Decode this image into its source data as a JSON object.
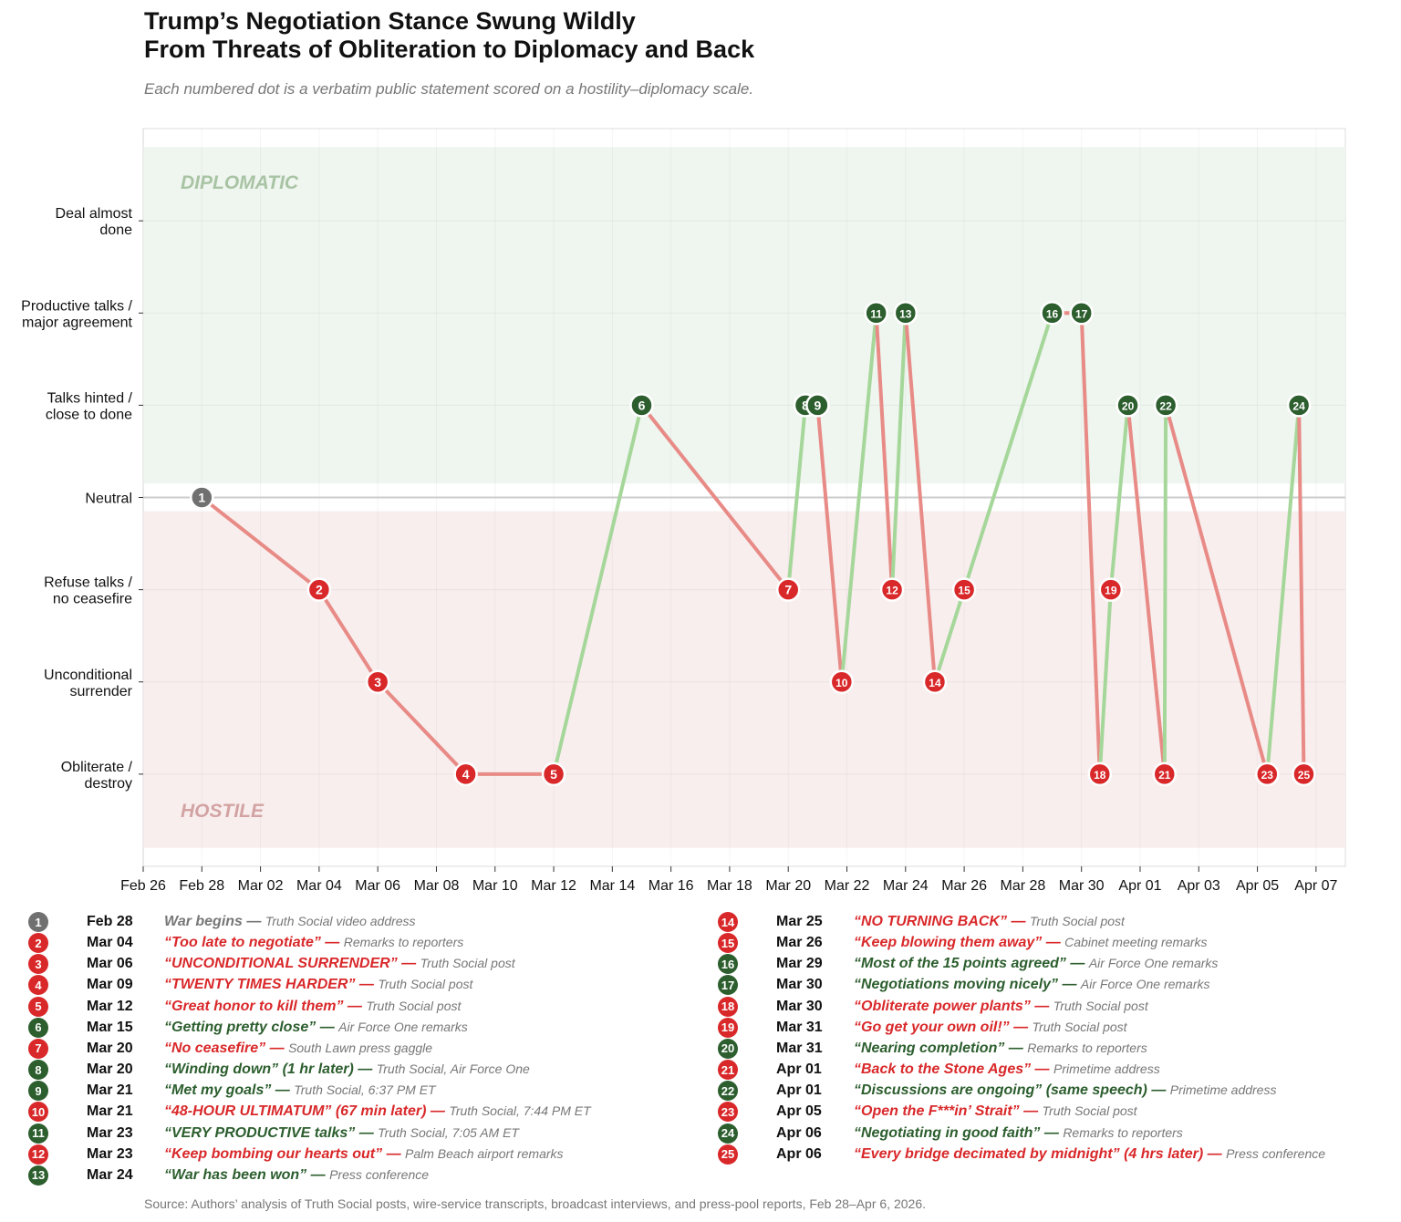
{
  "title_line1": "Trump’s Negotiation Stance Swung Wildly",
  "title_line2": "From Threats of Obliteration to Diplomacy and Back",
  "subtitle": "Each numbered dot is a verbatim public statement scored on a hostility–diplomacy scale.",
  "source": "Source: Authors’ analysis of Truth Social posts, wire-service transcripts, broadcast interviews, and press-pool reports, Feb 28–Apr 6, 2026.",
  "colors": {
    "hostile": "#d9282a",
    "diplomatic": "#2c5e2e",
    "neutral": "#707070",
    "hostile_line": "#e88b87",
    "diplomatic_line": "#a6d79a",
    "diplomatic_band": "#eff5ef",
    "hostile_band": "#f8eeee"
  },
  "chart_data": {
    "type": "line",
    "xlim": [
      "2026-02-26",
      "2026-04-08"
    ],
    "ylim": [
      -4,
      4
    ],
    "grid": true,
    "x_ticks": [
      "Feb 26",
      "Feb 28",
      "Mar 02",
      "Mar 04",
      "Mar 06",
      "Mar 08",
      "Mar 10",
      "Mar 12",
      "Mar 14",
      "Mar 16",
      "Mar 18",
      "Mar 20",
      "Mar 22",
      "Mar 24",
      "Mar 26",
      "Mar 28",
      "Mar 30",
      "Apr 01",
      "Apr 03",
      "Apr 05",
      "Apr 07"
    ],
    "y_ticks": [
      {
        "value": 3,
        "label": [
          "Deal almost",
          "done"
        ]
      },
      {
        "value": 2,
        "label": [
          "Productive talks /",
          "major agreement"
        ]
      },
      {
        "value": 1,
        "label": [
          "Talks hinted /",
          "close to done"
        ]
      },
      {
        "value": 0,
        "label": [
          "Neutral"
        ]
      },
      {
        "value": -1,
        "label": [
          "Refuse talks /",
          "no ceasefire"
        ]
      },
      {
        "value": -2,
        "label": [
          "Unconditional",
          "surrender"
        ]
      },
      {
        "value": -3,
        "label": [
          "Obliterate /",
          "destroy"
        ]
      }
    ],
    "bands": [
      {
        "label": "DIPLOMATIC",
        "from": 0.15,
        "to": 3.8
      },
      {
        "label": "HOSTILE",
        "from": -3.8,
        "to": -0.15
      }
    ],
    "points": [
      {
        "n": "1",
        "x": "2026-02-28T00:00",
        "y": 0,
        "tone": "neutral",
        "date": "Feb 28",
        "quote": "War begins",
        "source": "Truth Social video address"
      },
      {
        "n": "2",
        "x": "2026-03-04T00:00",
        "y": -1,
        "tone": "hostile",
        "date": "Mar 04",
        "quote": "“Too late to negotiate”",
        "source": "Remarks to reporters"
      },
      {
        "n": "3",
        "x": "2026-03-06T00:00",
        "y": -2,
        "tone": "hostile",
        "date": "Mar 06",
        "quote": "“UNCONDITIONAL SURRENDER”",
        "source": "Truth Social post"
      },
      {
        "n": "4",
        "x": "2026-03-09T00:00",
        "y": -3,
        "tone": "hostile",
        "date": "Mar 09",
        "quote": "“TWENTY TIMES HARDER”",
        "source": "Truth Social post"
      },
      {
        "n": "5",
        "x": "2026-03-12T00:00",
        "y": -3,
        "tone": "hostile",
        "date": "Mar 12",
        "quote": "“Great honor to kill them”",
        "source": "Truth Social post"
      },
      {
        "n": "6",
        "x": "2026-03-15T00:00",
        "y": 1,
        "tone": "diplomatic",
        "date": "Mar 15",
        "quote": "“Getting pretty close”",
        "source": "Air Force One remarks"
      },
      {
        "n": "7",
        "x": "2026-03-20T00:00",
        "y": -1,
        "tone": "hostile",
        "date": "Mar 20",
        "quote": "“No ceasefire”",
        "source": "South Lawn press gaggle"
      },
      {
        "n": "8",
        "x": "2026-03-20T14:00",
        "y": 1,
        "tone": "diplomatic",
        "date": "Mar 20",
        "quote": "“Winding down” (1 hr later)",
        "source": "Truth Social, Air Force One"
      },
      {
        "n": "9",
        "x": "2026-03-21T00:00",
        "y": 1,
        "tone": "diplomatic",
        "date": "Mar 21",
        "quote": "“Met my goals”",
        "source": "Truth Social, 6:37 PM ET"
      },
      {
        "n": "10",
        "x": "2026-03-21T19:44",
        "y": -2,
        "tone": "hostile",
        "date": "Mar 21",
        "quote": "“48-HOUR ULTIMATUM” (67 min later)",
        "source": "Truth Social, 7:44 PM ET"
      },
      {
        "n": "11",
        "x": "2026-03-23T00:00",
        "y": 2,
        "tone": "diplomatic",
        "date": "Mar 23",
        "quote": "“VERY PRODUCTIVE talks”",
        "source": "Truth Social, 7:05 AM ET"
      },
      {
        "n": "12",
        "x": "2026-03-23T13:00",
        "y": -1,
        "tone": "hostile",
        "date": "Mar 23",
        "quote": "“Keep bombing our hearts out”",
        "source": "Palm Beach airport remarks"
      },
      {
        "n": "13",
        "x": "2026-03-24T00:00",
        "y": 2,
        "tone": "diplomatic",
        "date": "Mar 24",
        "quote": "“War has been won”",
        "source": "Press conference"
      },
      {
        "n": "14",
        "x": "2026-03-25T00:00",
        "y": -2,
        "tone": "hostile",
        "date": "Mar 25",
        "quote": "“NO TURNING BACK”",
        "source": "Truth Social post"
      },
      {
        "n": "15",
        "x": "2026-03-26T00:00",
        "y": -1,
        "tone": "hostile",
        "date": "Mar 26",
        "quote": "“Keep blowing them away”",
        "source": "Cabinet meeting remarks"
      },
      {
        "n": "16",
        "x": "2026-03-29T00:00",
        "y": 2,
        "tone": "diplomatic",
        "date": "Mar 29",
        "quote": "“Most of the 15 points agreed”",
        "source": "Air Force One remarks"
      },
      {
        "n": "17",
        "x": "2026-03-30T00:00",
        "y": 2,
        "tone": "diplomatic",
        "date": "Mar 30",
        "quote": "“Negotiations moving nicely”",
        "source": "Air Force One remarks"
      },
      {
        "n": "18",
        "x": "2026-03-30T15:00",
        "y": -3,
        "tone": "hostile",
        "date": "Mar 30",
        "quote": "“Obliterate power plants”",
        "source": "Truth Social post"
      },
      {
        "n": "19",
        "x": "2026-03-31T00:00",
        "y": -1,
        "tone": "hostile",
        "date": "Mar 31",
        "quote": "“Go get your own oil!”",
        "source": "Truth Social post"
      },
      {
        "n": "20",
        "x": "2026-03-31T14:00",
        "y": 1,
        "tone": "diplomatic",
        "date": "Mar 31",
        "quote": "“Nearing completion”",
        "source": "Remarks to reporters"
      },
      {
        "n": "21",
        "x": "2026-04-01T20:00",
        "y": -3,
        "tone": "hostile",
        "date": "Apr 01",
        "quote": "“Back to the Stone Ages”",
        "source": "Primetime address"
      },
      {
        "n": "22",
        "x": "2026-04-01T21:00",
        "y": 1,
        "tone": "diplomatic",
        "date": "Apr 01",
        "quote": "“Discussions are ongoing” (same speech)",
        "source": "Primetime address"
      },
      {
        "n": "23",
        "x": "2026-04-05T08:00",
        "y": -3,
        "tone": "hostile",
        "date": "Apr 05",
        "quote": "“Open the F***in’ Strait”",
        "source": "Truth Social post"
      },
      {
        "n": "24",
        "x": "2026-04-06T10:00",
        "y": 1,
        "tone": "diplomatic",
        "date": "Apr 06",
        "quote": "“Negotiating in good faith”",
        "source": "Remarks to reporters"
      },
      {
        "n": "25",
        "x": "2026-04-06T14:00",
        "y": -3,
        "tone": "hostile",
        "date": "Apr 06",
        "quote": "“Every bridge decimated by midnight” (4 hrs later)",
        "source": "Press conference"
      }
    ]
  }
}
